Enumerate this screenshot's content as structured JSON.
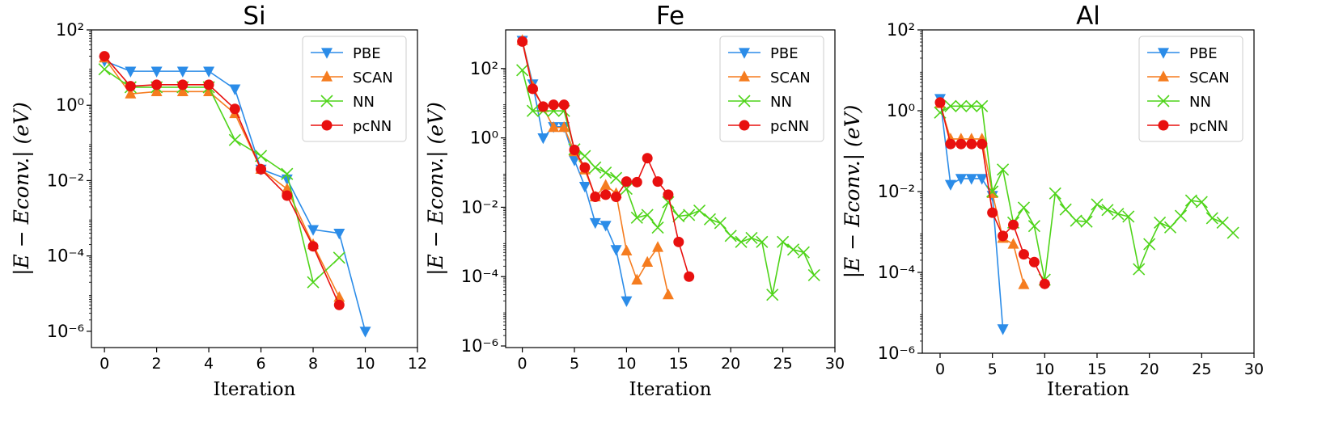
{
  "chart_data": [
    {
      "type": "line",
      "title": "Si",
      "xlabel": "Iteration",
      "ylabel": "|E − Econv.| (eV)",
      "log_y": true,
      "legend": "upper right",
      "xlim": [
        -0.5,
        12
      ],
      "xticks": [
        0,
        2,
        4,
        6,
        8,
        10,
        12
      ],
      "ylim": [
        3.7e-07,
        100
      ],
      "yticks": [
        {
          "value": 1e-06,
          "label": "10⁻⁶"
        },
        {
          "value": 0.0001,
          "label": "10⁻⁴"
        },
        {
          "value": 0.01,
          "label": "10⁻²"
        },
        {
          "value": 1,
          "label": "10⁰"
        },
        {
          "value": 100,
          "label": "10²"
        }
      ],
      "series": [
        {
          "name": "PBE",
          "color": "#2b8ce8",
          "marker": "tri-down",
          "x": [
            0,
            1,
            2,
            3,
            4,
            5,
            6,
            7,
            8,
            9,
            10
          ],
          "values": [
            15,
            8,
            8,
            8,
            8,
            2.7,
            0.02,
            0.011,
            0.0005,
            0.0004,
            1e-06
          ]
        },
        {
          "name": "SCAN",
          "color": "#f57c1f",
          "marker": "tri-up",
          "x": [
            0,
            1,
            2,
            3,
            4,
            5,
            6,
            7,
            8,
            9
          ],
          "values": [
            18,
            2,
            2.3,
            2.3,
            2.3,
            0.6,
            0.02,
            0.006,
            0.0002,
            8e-06
          ]
        },
        {
          "name": "NN",
          "color": "#4fd41a",
          "marker": "x",
          "x": [
            0,
            1,
            2,
            3,
            4,
            5,
            6,
            7,
            8,
            9
          ],
          "values": [
            9,
            3,
            3,
            3,
            3,
            0.12,
            0.045,
            0.015,
            2e-05,
            9e-05
          ]
        },
        {
          "name": "pcNN",
          "color": "#e8100f",
          "marker": "circle",
          "x": [
            0,
            1,
            2,
            3,
            4,
            5,
            6,
            7,
            8,
            9
          ],
          "values": [
            20,
            3.2,
            3.5,
            3.5,
            3.5,
            0.8,
            0.02,
            0.004,
            0.00018,
            5e-06
          ]
        }
      ]
    },
    {
      "type": "line",
      "title": "Fe",
      "xlabel": "Iteration",
      "ylabel": "|E − Econv.| (eV)",
      "log_y": true,
      "legend": "upper right",
      "xlim": [
        -1.6,
        30
      ],
      "xticks": [
        0,
        5,
        10,
        15,
        20,
        25,
        30
      ],
      "ylim": [
        9e-07,
        1300
      ],
      "yticks": [
        {
          "value": 1e-06,
          "label": "10⁻⁶"
        },
        {
          "value": 0.0001,
          "label": "10⁻⁴"
        },
        {
          "value": 0.01,
          "label": "10⁻²"
        },
        {
          "value": 1,
          "label": "10⁰"
        },
        {
          "value": 100,
          "label": "10²"
        }
      ],
      "series": [
        {
          "name": "PBE",
          "color": "#2b8ce8",
          "marker": "tri-down",
          "x": [
            0,
            1,
            2,
            3,
            4,
            5,
            6,
            7,
            8,
            9,
            10
          ],
          "values": [
            650,
            36,
            1,
            2.1,
            2.1,
            0.23,
            0.04,
            0.0036,
            0.003,
            0.0006,
            2e-05
          ]
        },
        {
          "name": "SCAN",
          "color": "#f57c1f",
          "marker": "tri-up",
          "x": [
            0,
            1,
            2,
            3,
            4,
            5,
            6,
            7,
            8,
            9,
            10,
            11,
            12,
            13,
            14
          ],
          "values": [
            650,
            30,
            7.5,
            2,
            2,
            0.4,
            0.12,
            0.02,
            0.043,
            0.025,
            0.00055,
            8e-05,
            0.00026,
            0.0007,
            3e-05
          ]
        },
        {
          "name": "NN",
          "color": "#4fd41a",
          "marker": "x",
          "x": [
            0,
            1,
            2,
            3,
            4,
            5,
            6,
            7,
            8,
            9,
            10,
            11,
            12,
            13,
            14,
            15,
            16,
            17,
            18,
            19,
            20,
            21,
            22,
            23,
            24,
            25,
            26,
            27,
            28
          ],
          "values": [
            90,
            6,
            6,
            6,
            6,
            0.47,
            0.3,
            0.14,
            0.1,
            0.07,
            0.034,
            0.005,
            0.006,
            0.0026,
            0.014,
            0.0055,
            0.006,
            0.008,
            0.0045,
            0.0035,
            0.0015,
            0.001,
            0.0013,
            0.001,
            3e-05,
            0.001,
            0.0006,
            0.0005,
            0.00011
          ]
        },
        {
          "name": "pcNN",
          "color": "#e8100f",
          "marker": "circle",
          "x": [
            0,
            1,
            2,
            3,
            4,
            5,
            6,
            7,
            8,
            9,
            10,
            11,
            12,
            13,
            14,
            15,
            16
          ],
          "values": [
            600,
            26,
            8,
            9,
            9,
            0.45,
            0.14,
            0.02,
            0.023,
            0.02,
            0.055,
            0.053,
            0.26,
            0.055,
            0.023,
            0.001,
            0.0001
          ]
        }
      ]
    },
    {
      "type": "line",
      "title": "Al",
      "xlabel": "Iteration",
      "ylabel": "|E − Econv.| (eV)",
      "log_y": true,
      "legend": "upper right",
      "xlim": [
        -1.7,
        30
      ],
      "xticks": [
        0,
        5,
        10,
        15,
        20,
        25,
        30
      ],
      "ylim": [
        1e-06,
        100
      ],
      "yticks": [
        {
          "value": 1e-06,
          "label": "10⁻⁶"
        },
        {
          "value": 0.0001,
          "label": "10⁻⁴"
        },
        {
          "value": 0.01,
          "label": "10⁻²"
        },
        {
          "value": 1,
          "label": "10⁰"
        },
        {
          "value": 100,
          "label": "10²"
        }
      ],
      "series": [
        {
          "name": "PBE",
          "color": "#2b8ce8",
          "marker": "tri-down",
          "x": [
            0,
            1,
            2,
            3,
            4,
            5,
            6
          ],
          "values": [
            2,
            0.015,
            0.021,
            0.021,
            0.021,
            0.008,
            4e-06
          ]
        },
        {
          "name": "SCAN",
          "color": "#f57c1f",
          "marker": "tri-up",
          "x": [
            0,
            1,
            2,
            3,
            4,
            5,
            6,
            7,
            8
          ],
          "values": [
            1.5,
            0.2,
            0.2,
            0.2,
            0.2,
            0.009,
            0.0007,
            0.0005,
            5e-05
          ]
        },
        {
          "name": "NN",
          "color": "#4fd41a",
          "marker": "x",
          "x": [
            0,
            1,
            2,
            3,
            4,
            5,
            6,
            7,
            8,
            9,
            10,
            11,
            12,
            13,
            14,
            15,
            16,
            17,
            18,
            19,
            20,
            21,
            22,
            23,
            24,
            25,
            26,
            27,
            28
          ],
          "values": [
            0.9,
            1.3,
            1.3,
            1.3,
            1.3,
            0.01,
            0.035,
            0.0017,
            0.004,
            0.0014,
            6.6e-05,
            0.009,
            0.0036,
            0.0019,
            0.0018,
            0.0048,
            0.0035,
            0.0028,
            0.0024,
            0.00012,
            0.0005,
            0.0017,
            0.0013,
            0.0025,
            0.006,
            0.0055,
            0.0022,
            0.0017,
            0.00095
          ]
        },
        {
          "name": "pcNN",
          "color": "#e8100f",
          "marker": "circle",
          "x": [
            0,
            1,
            2,
            3,
            4,
            5,
            6,
            7,
            8,
            9,
            10
          ],
          "values": [
            1.6,
            0.15,
            0.15,
            0.15,
            0.15,
            0.003,
            0.0008,
            0.0015,
            0.00028,
            0.00018,
            5.2e-05
          ]
        }
      ]
    }
  ]
}
